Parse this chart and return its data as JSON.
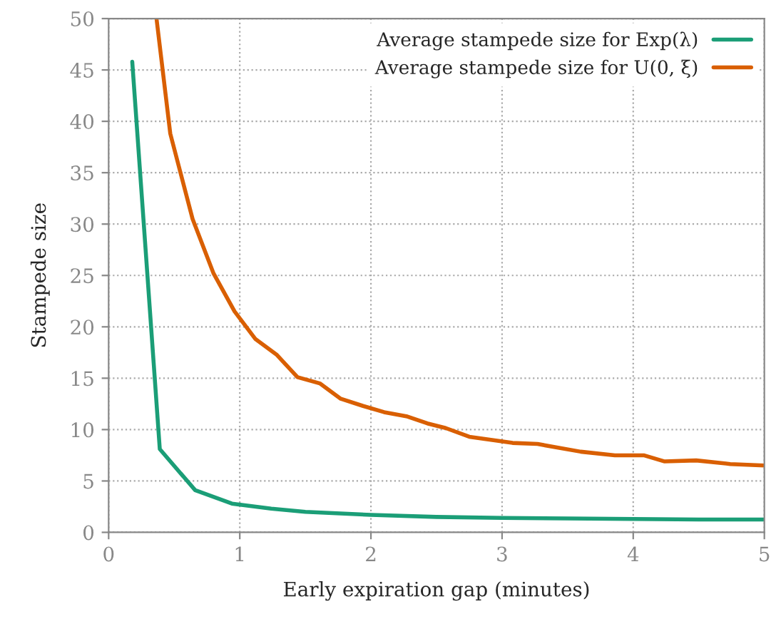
{
  "chart_data": {
    "type": "line",
    "xlabel": "Early expiration gap (minutes)",
    "ylabel": "Stampede size",
    "xlim": [
      0,
      5
    ],
    "ylim": [
      0,
      50
    ],
    "xticks": [
      0,
      1,
      2,
      3,
      4,
      5
    ],
    "yticks": [
      0,
      5,
      10,
      15,
      20,
      25,
      30,
      35,
      40,
      45,
      50
    ],
    "grid": true,
    "legend": "top right",
    "marker": "none",
    "line_style": "solid",
    "series": [
      {
        "name": "Average stampede size for Exp(λ)",
        "color": "#1b9e77",
        "x": [
          0.18,
          0.39,
          0.66,
          0.94,
          1.24,
          1.5,
          2.0,
          2.5,
          3.0,
          3.5,
          4.0,
          4.5,
          5.0
        ],
        "values": [
          45.8,
          8.1,
          4.1,
          2.8,
          2.3,
          2.0,
          1.7,
          1.5,
          1.4,
          1.35,
          1.3,
          1.25,
          1.25
        ]
      },
      {
        "name": "Average stampede size for U(0, ξ)",
        "color": "#d95f02",
        "x": [
          0.365,
          0.47,
          0.64,
          0.8,
          0.96,
          1.12,
          1.28,
          1.44,
          1.61,
          1.77,
          1.94,
          2.1,
          2.27,
          2.43,
          2.57,
          2.75,
          3.08,
          3.27,
          3.6,
          3.86,
          4.08,
          4.24,
          4.48,
          4.74,
          5.0
        ],
        "values": [
          50,
          38.8,
          30.5,
          25.2,
          21.5,
          18.8,
          17.3,
          15.1,
          14.5,
          13.0,
          12.3,
          11.7,
          11.3,
          10.6,
          10.15,
          9.3,
          8.7,
          8.6,
          7.85,
          7.5,
          7.5,
          6.9,
          7.0,
          6.65,
          6.5
        ]
      }
    ]
  }
}
